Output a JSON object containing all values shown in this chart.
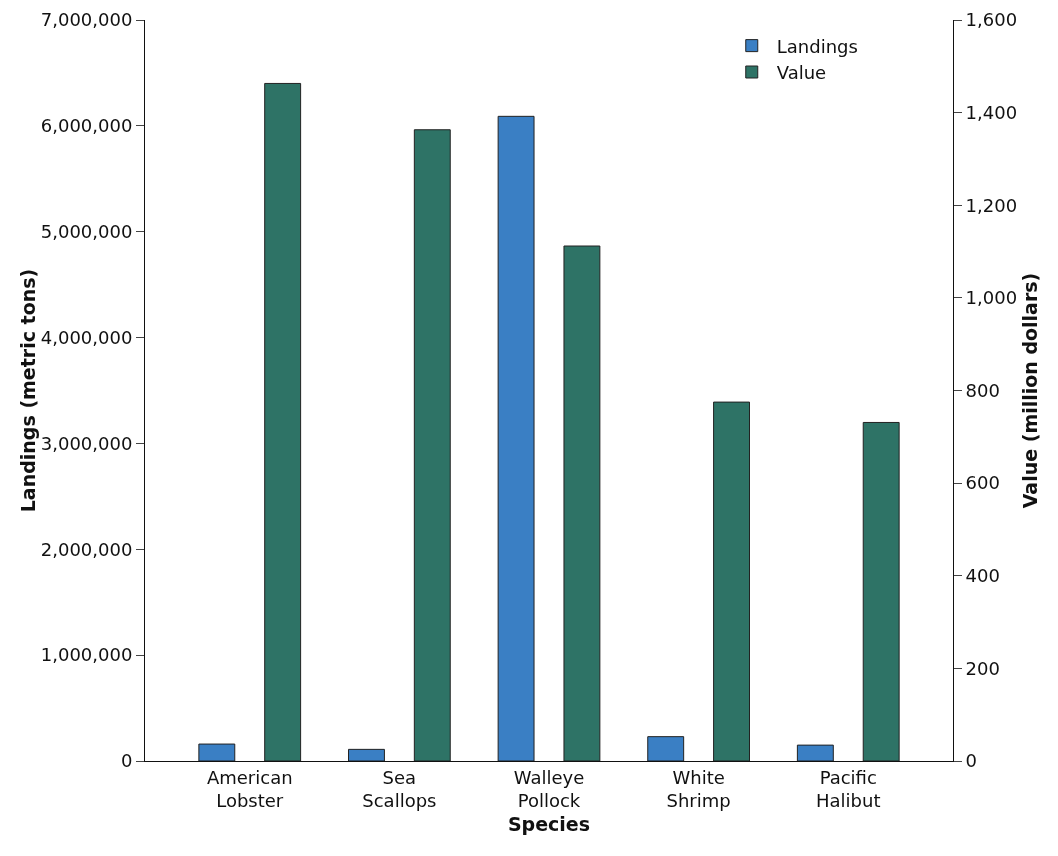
{
  "chart_data": {
    "type": "bar",
    "xlabel": "Species",
    "ylabel": "Landings (metric tons)",
    "y2label": "Value (million dollars)",
    "categories": [
      "American Lobster",
      "Sea Scallops",
      "Walleye Pollock",
      "White Shrimp",
      "Pacific Halibut"
    ],
    "series": [
      {
        "name": "Landings",
        "color": "#3a7fc4",
        "values": [
          160000,
          110000,
          6090000,
          230000,
          150000
        ]
      },
      {
        "name": "Value",
        "color": "#2e7366",
        "axis": "y2",
        "values": [
          1463,
          1363,
          1112,
          775,
          731
        ]
      }
    ],
    "ylim": [
      0,
      7000000
    ],
    "yticks": [
      0,
      {
        "value": 1000000,
        "label": "1,000,000"
      },
      {
        "value": 2000000,
        "label": "2,000,000"
      },
      {
        "value": 3000000,
        "label": "3,000,000"
      },
      {
        "value": 4000000,
        "label": "4,000,000"
      },
      {
        "value": 5000000,
        "label": "5,000,000"
      },
      {
        "value": 6000000,
        "label": "6,000,000"
      },
      {
        "value": 7000000,
        "label": "7,000,000"
      }
    ],
    "y2lim": [
      0,
      1600
    ],
    "y2ticks": [
      0,
      200,
      400,
      600,
      800,
      {
        "value": 1000,
        "label": "1,000"
      },
      {
        "value": 1200,
        "label": "1,200"
      },
      {
        "value": 1400,
        "label": "1,400"
      },
      {
        "value": 1600,
        "label": "1,600"
      }
    ],
    "grid": false,
    "legend": "top right"
  }
}
